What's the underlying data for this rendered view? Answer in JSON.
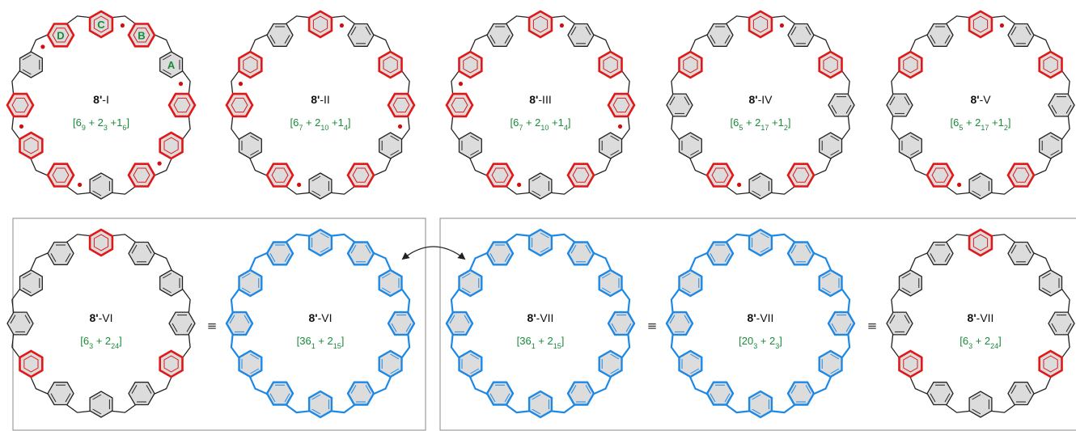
{
  "colors": {
    "bond": "#222222",
    "fill": "#dcdcdc",
    "clar_red": "#e01818",
    "kekule_blue": "#1e88e5",
    "formula_green": "#1a8a3a",
    "radical": "#d01010",
    "frame": "#888888"
  },
  "macrocycles": [
    {
      "id": "8'-I",
      "bold": "8'",
      "suffix": "-I",
      "formula_base": [
        "6",
        "+ 2",
        "+1"
      ],
      "formula_sub": [
        "9",
        "3",
        "6"
      ],
      "style": "clar",
      "red_count": 9,
      "radicals": 6,
      "ring_letters": [
        "D",
        "C",
        "B",
        "A"
      ]
    },
    {
      "id": "8'-II",
      "bold": "8'",
      "suffix": "-II",
      "formula_base": [
        "6",
        "+ 2",
        "+1"
      ],
      "formula_sub": [
        "7",
        "10",
        "4"
      ],
      "style": "clar",
      "red_count": 7,
      "radicals": 4
    },
    {
      "id": "8'-III",
      "bold": "8'",
      "suffix": "-III",
      "formula_base": [
        "6",
        "+ 2",
        "+1"
      ],
      "formula_sub": [
        "7",
        "10",
        "4"
      ],
      "style": "clar",
      "red_count": 7,
      "radicals": 4
    },
    {
      "id": "8'-IV",
      "bold": "8'",
      "suffix": "-IV",
      "formula_base": [
        "6",
        "+ 2",
        "+1"
      ],
      "formula_sub": [
        "5",
        "17",
        "2"
      ],
      "style": "clar",
      "red_count": 5,
      "radicals": 2
    },
    {
      "id": "8'-V",
      "bold": "8'",
      "suffix": "-V",
      "formula_base": [
        "6",
        "+ 2",
        "+1"
      ],
      "formula_sub": [
        "5",
        "17",
        "2"
      ],
      "style": "clar",
      "red_count": 5,
      "radicals": 2
    },
    {
      "id": "8'-VI",
      "bold": "8'",
      "suffix": "-VI",
      "formula_base": [
        "6",
        "+ 2"
      ],
      "formula_sub": [
        "3",
        "24"
      ],
      "style": "clar",
      "red_count": 3,
      "radicals": 0
    },
    {
      "id": "8'-VI",
      "bold": "8'",
      "suffix": "-VI",
      "formula_base": [
        "36",
        "+ 2"
      ],
      "formula_sub": [
        "1",
        "15"
      ],
      "style": "kekule",
      "red_count": 0,
      "radicals": 0
    },
    {
      "id": "8'-VII",
      "bold": "8'",
      "suffix": "-VII",
      "formula_base": [
        "36",
        "+ 2"
      ],
      "formula_sub": [
        "1",
        "15"
      ],
      "style": "kekule",
      "red_count": 0,
      "radicals": 0
    },
    {
      "id": "8'-VII",
      "bold": "8'",
      "suffix": "-VII",
      "formula_base": [
        "20",
        "+ 2"
      ],
      "formula_sub": [
        "3",
        "3"
      ],
      "style": "kekule",
      "red_count": 0,
      "radicals": 0
    },
    {
      "id": "8'-VII",
      "bold": "8'",
      "suffix": "-VII",
      "formula_base": [
        "6",
        "+ 2"
      ],
      "formula_sub": [
        "3",
        "24"
      ],
      "style": "clar",
      "red_count": 3,
      "radicals": 0
    }
  ],
  "equivalence_symbol": "≡"
}
